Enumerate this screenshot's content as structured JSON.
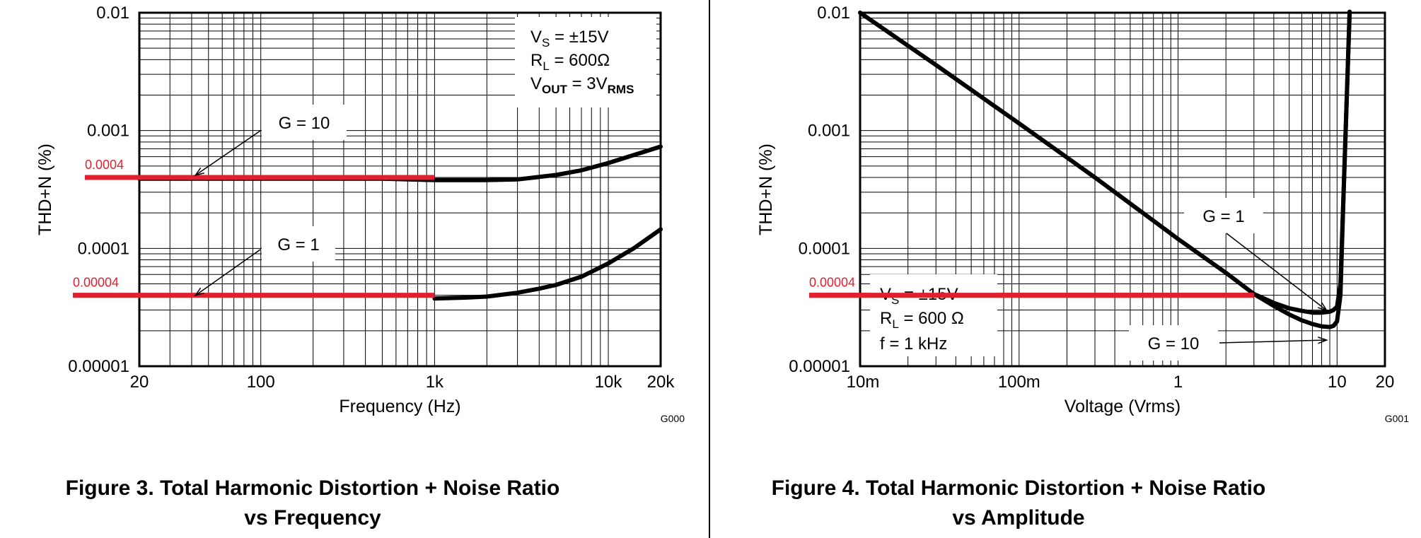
{
  "colors": {
    "curve": "#000000",
    "grid": "#000000",
    "highlight": "#e0202e"
  },
  "chart_data": [
    {
      "type": "line",
      "xlabel": "Frequency (Hz)",
      "ylabel": "THD+N (%)",
      "x_scale": "log",
      "y_scale": "log",
      "xlim": [
        20,
        20000
      ],
      "ylim": [
        1e-05,
        0.01
      ],
      "grid": true,
      "x_tick_labels": [
        "20",
        "100",
        "1k",
        "10k",
        "20k"
      ],
      "y_tick_labels": [
        "0.01",
        "0.001",
        "0.0001",
        "0.00001"
      ],
      "code": "G000",
      "conditions": {
        "vs": {
          "base": "V",
          "sub": "S",
          "rest": " = ±15V"
        },
        "rl": {
          "base": "R",
          "sub": "L",
          "rest": " = 600Ω"
        },
        "vout": {
          "base": "V",
          "sub": "OUT",
          "rest": " = 3V",
          "sub2": "RMS"
        }
      },
      "series": [
        {
          "name": "G = 10",
          "x": [
            20,
            50,
            100,
            200,
            500,
            1000,
            2000,
            3000,
            5000,
            7000,
            10000,
            15000,
            20000
          ],
          "y": [
            0.00039,
            0.00039,
            0.00039,
            0.00039,
            0.00039,
            0.00038,
            0.00038,
            0.000385,
            0.00042,
            0.00046,
            0.00053,
            0.00064,
            0.00073
          ]
        },
        {
          "name": "G = 1",
          "x": [
            1000,
            1500,
            2000,
            3000,
            4000,
            5000,
            7000,
            10000,
            14000,
            20000
          ],
          "y": [
            3.75e-05,
            3.82e-05,
            3.9e-05,
            4.2e-05,
            4.55e-05,
            4.9e-05,
            5.75e-05,
            7.45e-05,
            0.0001,
            0.000145
          ]
        }
      ],
      "highlights": [
        {
          "label": "0.0004",
          "value": 0.0004,
          "x_from": 20,
          "x_to": 1000
        },
        {
          "label": "0.00004",
          "value": 4e-05,
          "x_from": 20,
          "x_to": 1000
        }
      ],
      "callouts": [
        "G = 10",
        "G = 1"
      ]
    },
    {
      "type": "line",
      "xlabel": "Voltage (Vrms)",
      "ylabel": "THD+N (%)",
      "x_scale": "log",
      "y_scale": "log",
      "xlim": [
        0.01,
        20
      ],
      "ylim": [
        1e-05,
        0.01
      ],
      "grid": true,
      "x_tick_labels": [
        "10m",
        "100m",
        "1",
        "10",
        "20"
      ],
      "y_tick_labels": [
        "0.01",
        "0.001",
        "0.0001",
        "0.00001"
      ],
      "code": "G001",
      "conditions": {
        "vs": {
          "base": "V",
          "sub": "S",
          "rest": " = ±15V"
        },
        "rl": {
          "base": "R",
          "sub": "L",
          "rest": " = 600 Ω"
        },
        "f": "f = 1 kHz"
      },
      "series": [
        {
          "name": "G = 1",
          "x": [
            0.01,
            0.03,
            0.1,
            0.3,
            1,
            2,
            3,
            4,
            5,
            6,
            7,
            8,
            9,
            9.5,
            10,
            10.5,
            11,
            12
          ],
          "y": [
            0.01,
            0.0036,
            0.00115,
            0.0004,
            0.00012,
            6.2e-05,
            4.1e-05,
            3.45e-05,
            3.1e-05,
            2.95e-05,
            2.85e-05,
            2.85e-05,
            2.9e-05,
            3e-05,
            3.2e-05,
            5e-05,
            0.0003,
            0.0102
          ]
        },
        {
          "name": "G = 10",
          "x": [
            3,
            4,
            5,
            6,
            7,
            8,
            9,
            9.5,
            10,
            10.5,
            11,
            12
          ],
          "y": [
            4.1e-05,
            3.25e-05,
            2.75e-05,
            2.45e-05,
            2.28e-05,
            2.18e-05,
            2.15e-05,
            2.2e-05,
            2.4e-05,
            4e-05,
            0.0003,
            0.0102
          ]
        }
      ],
      "highlights": [
        {
          "label": "0.00004",
          "value": 4e-05,
          "x_from": 0.01,
          "x_to": 3
        }
      ],
      "callouts": [
        "G = 1",
        "G = 10"
      ]
    }
  ],
  "captions": {
    "figure3": [
      "Figure 3. Total Harmonic Distortion + Noise Ratio",
      "vs Frequency"
    ],
    "figure4": [
      "Figure 4. Total Harmonic Distortion + Noise Ratio",
      "vs Amplitude"
    ]
  }
}
